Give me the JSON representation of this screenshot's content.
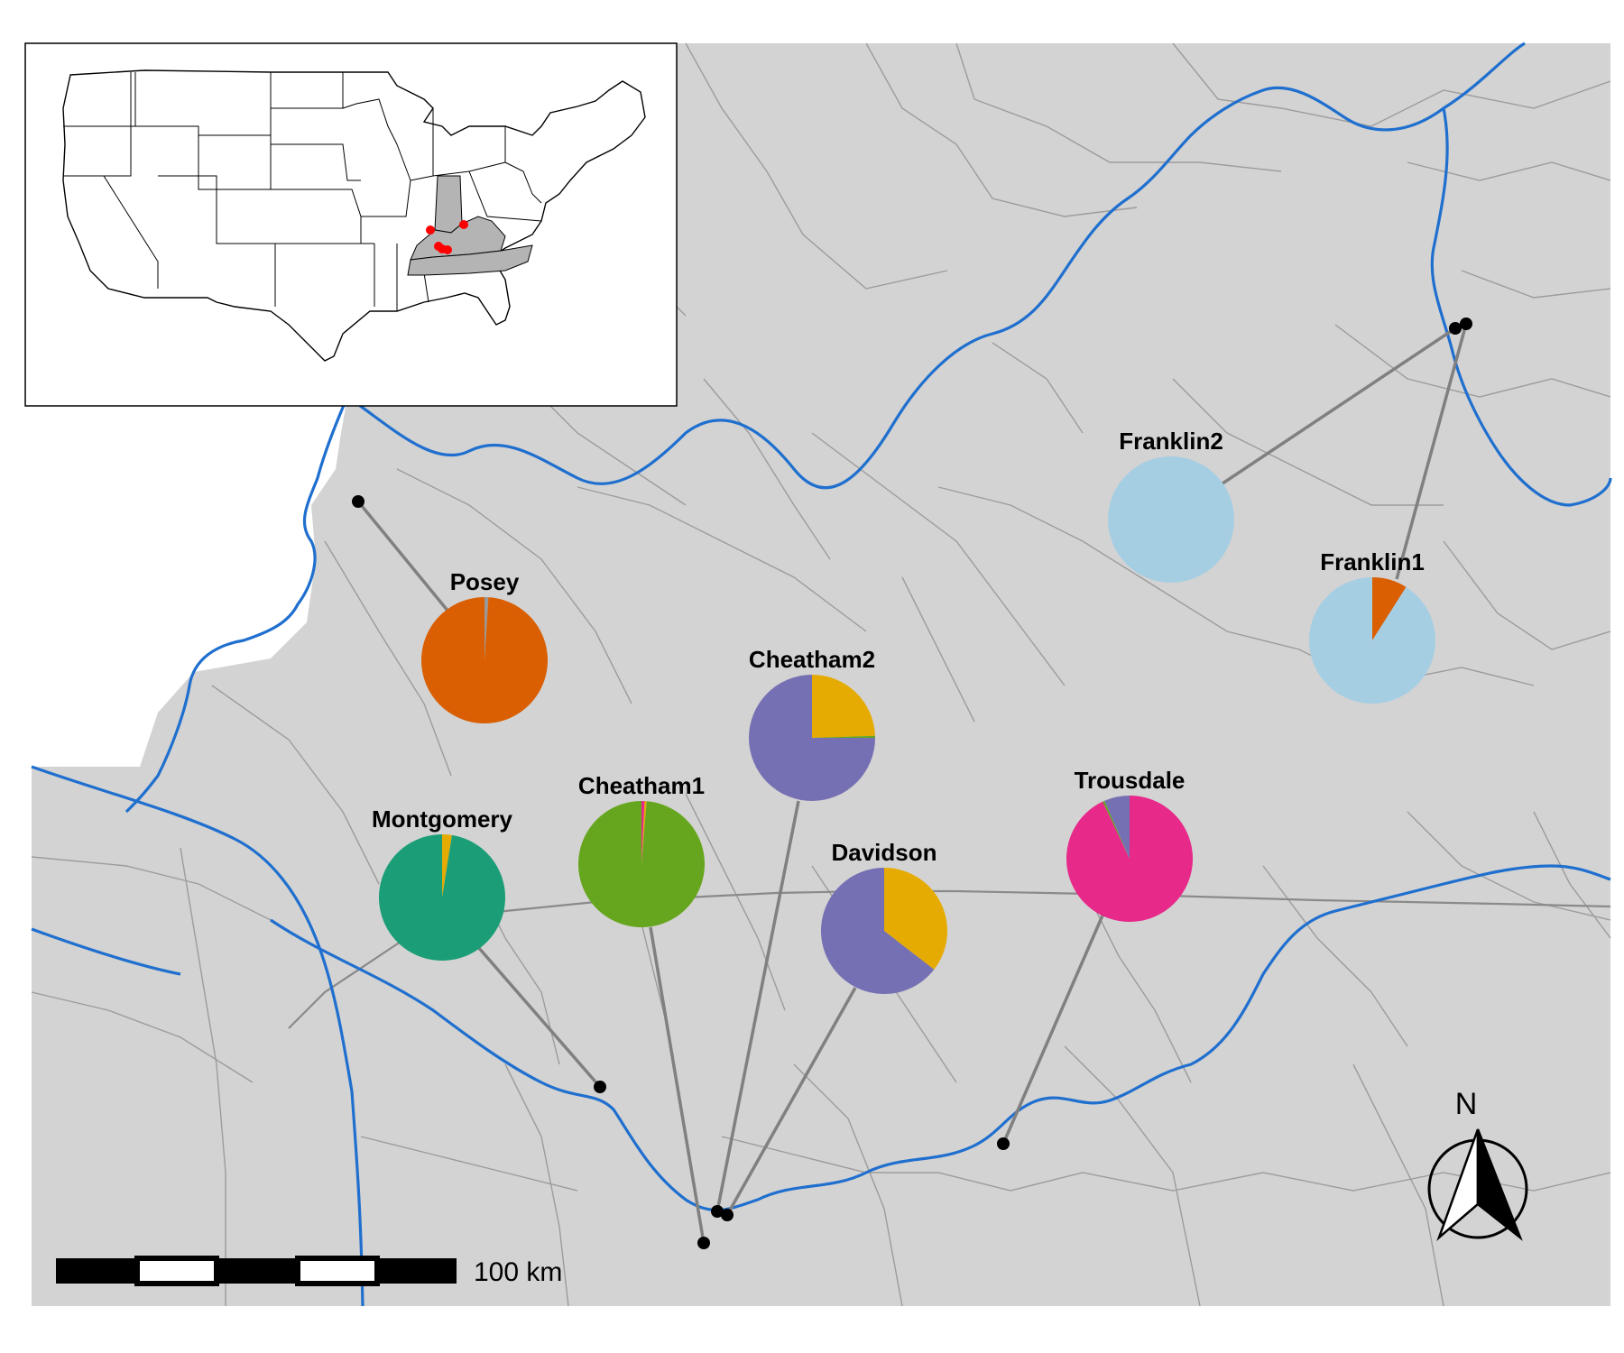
{
  "colors": {
    "land": "#d3d3d3",
    "county_line": "#9c9c9c",
    "state_line": "#8a8a8a",
    "river": "#1f6fcf",
    "leader": "#808080",
    "point": "#000000",
    "inset_highlight": "#b4b4b4",
    "inset_point": "#ff0000"
  },
  "clusters": {
    "orange": "#d95f02",
    "purple": "#7570b3",
    "gold": "#e6ab02",
    "green": "#66a61e",
    "teal": "#1b9e77",
    "pink": "#e7298a",
    "lightblue": "#a6cee3",
    "gray": "#999999"
  },
  "sites": [
    {
      "name": "Posey",
      "proportions": [
        {
          "cluster": "gray",
          "value": 0.01
        },
        {
          "cluster": "orange",
          "value": 0.99
        }
      ]
    },
    {
      "name": "Montgomery",
      "proportions": [
        {
          "cluster": "gold",
          "value": 0.025
        },
        {
          "cluster": "teal",
          "value": 0.975
        }
      ]
    },
    {
      "name": "Cheatham1",
      "proportions": [
        {
          "cluster": "pink",
          "value": 0.008
        },
        {
          "cluster": "gold",
          "value": 0.005
        },
        {
          "cluster": "green",
          "value": 0.987
        }
      ]
    },
    {
      "name": "Cheatham2",
      "proportions": [
        {
          "cluster": "gold",
          "value": 0.245
        },
        {
          "cluster": "green",
          "value": 0.005
        },
        {
          "cluster": "purple",
          "value": 0.75
        }
      ]
    },
    {
      "name": "Davidson",
      "proportions": [
        {
          "cluster": "gold",
          "value": 0.355
        },
        {
          "cluster": "purple",
          "value": 0.645
        }
      ]
    },
    {
      "name": "Trousdale",
      "proportions": [
        {
          "cluster": "pink",
          "value": 0.93
        },
        {
          "cluster": "green",
          "value": 0.005
        },
        {
          "cluster": "purple",
          "value": 0.065
        }
      ]
    },
    {
      "name": "Franklin2",
      "proportions": [
        {
          "cluster": "lightblue",
          "value": 1.0
        }
      ]
    },
    {
      "name": "Franklin1",
      "proportions": [
        {
          "cluster": "orange",
          "value": 0.09
        },
        {
          "cluster": "lightblue",
          "value": 0.91
        }
      ]
    }
  ],
  "scale_bar": {
    "label": "100 km"
  },
  "north_arrow": {
    "label": "N"
  },
  "icons": {
    "north_arrow": "north-arrow-icon"
  }
}
